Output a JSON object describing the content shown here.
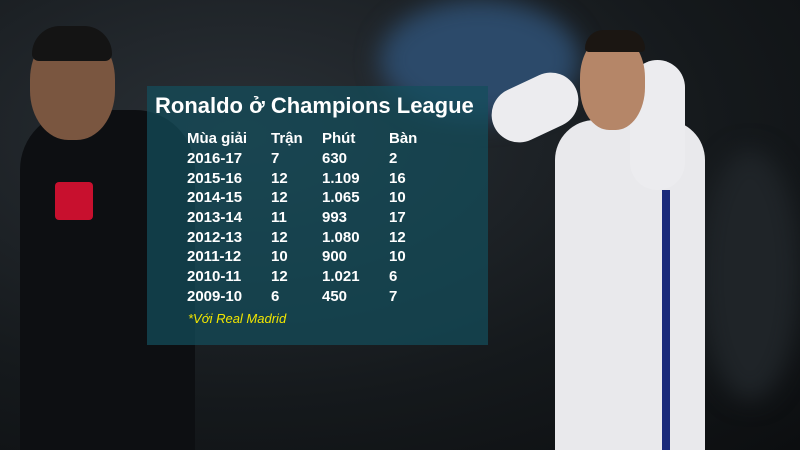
{
  "title": "Ronaldo ở Champions League",
  "table": {
    "headers": [
      "Mùa giải",
      "Trận",
      "Phút",
      "Bàn"
    ],
    "rows": [
      [
        "2016-17",
        "7",
        "630",
        "2"
      ],
      [
        "2015-16",
        "12",
        "1.109",
        "16"
      ],
      [
        "2014-15",
        "12",
        "1.065",
        "10"
      ],
      [
        "2013-14",
        "11",
        "993",
        "17"
      ],
      [
        "2012-13",
        "12",
        "1.080",
        "12"
      ],
      [
        "2011-12",
        "10",
        "900",
        "10"
      ],
      [
        "2010-11",
        "12",
        "1.021",
        "6"
      ],
      [
        "2009-10",
        "6",
        "450",
        "7"
      ]
    ]
  },
  "footnote": "*Với Real Madrid",
  "colors": {
    "overlay": "#144e5c",
    "footnote": "#f2e600"
  }
}
